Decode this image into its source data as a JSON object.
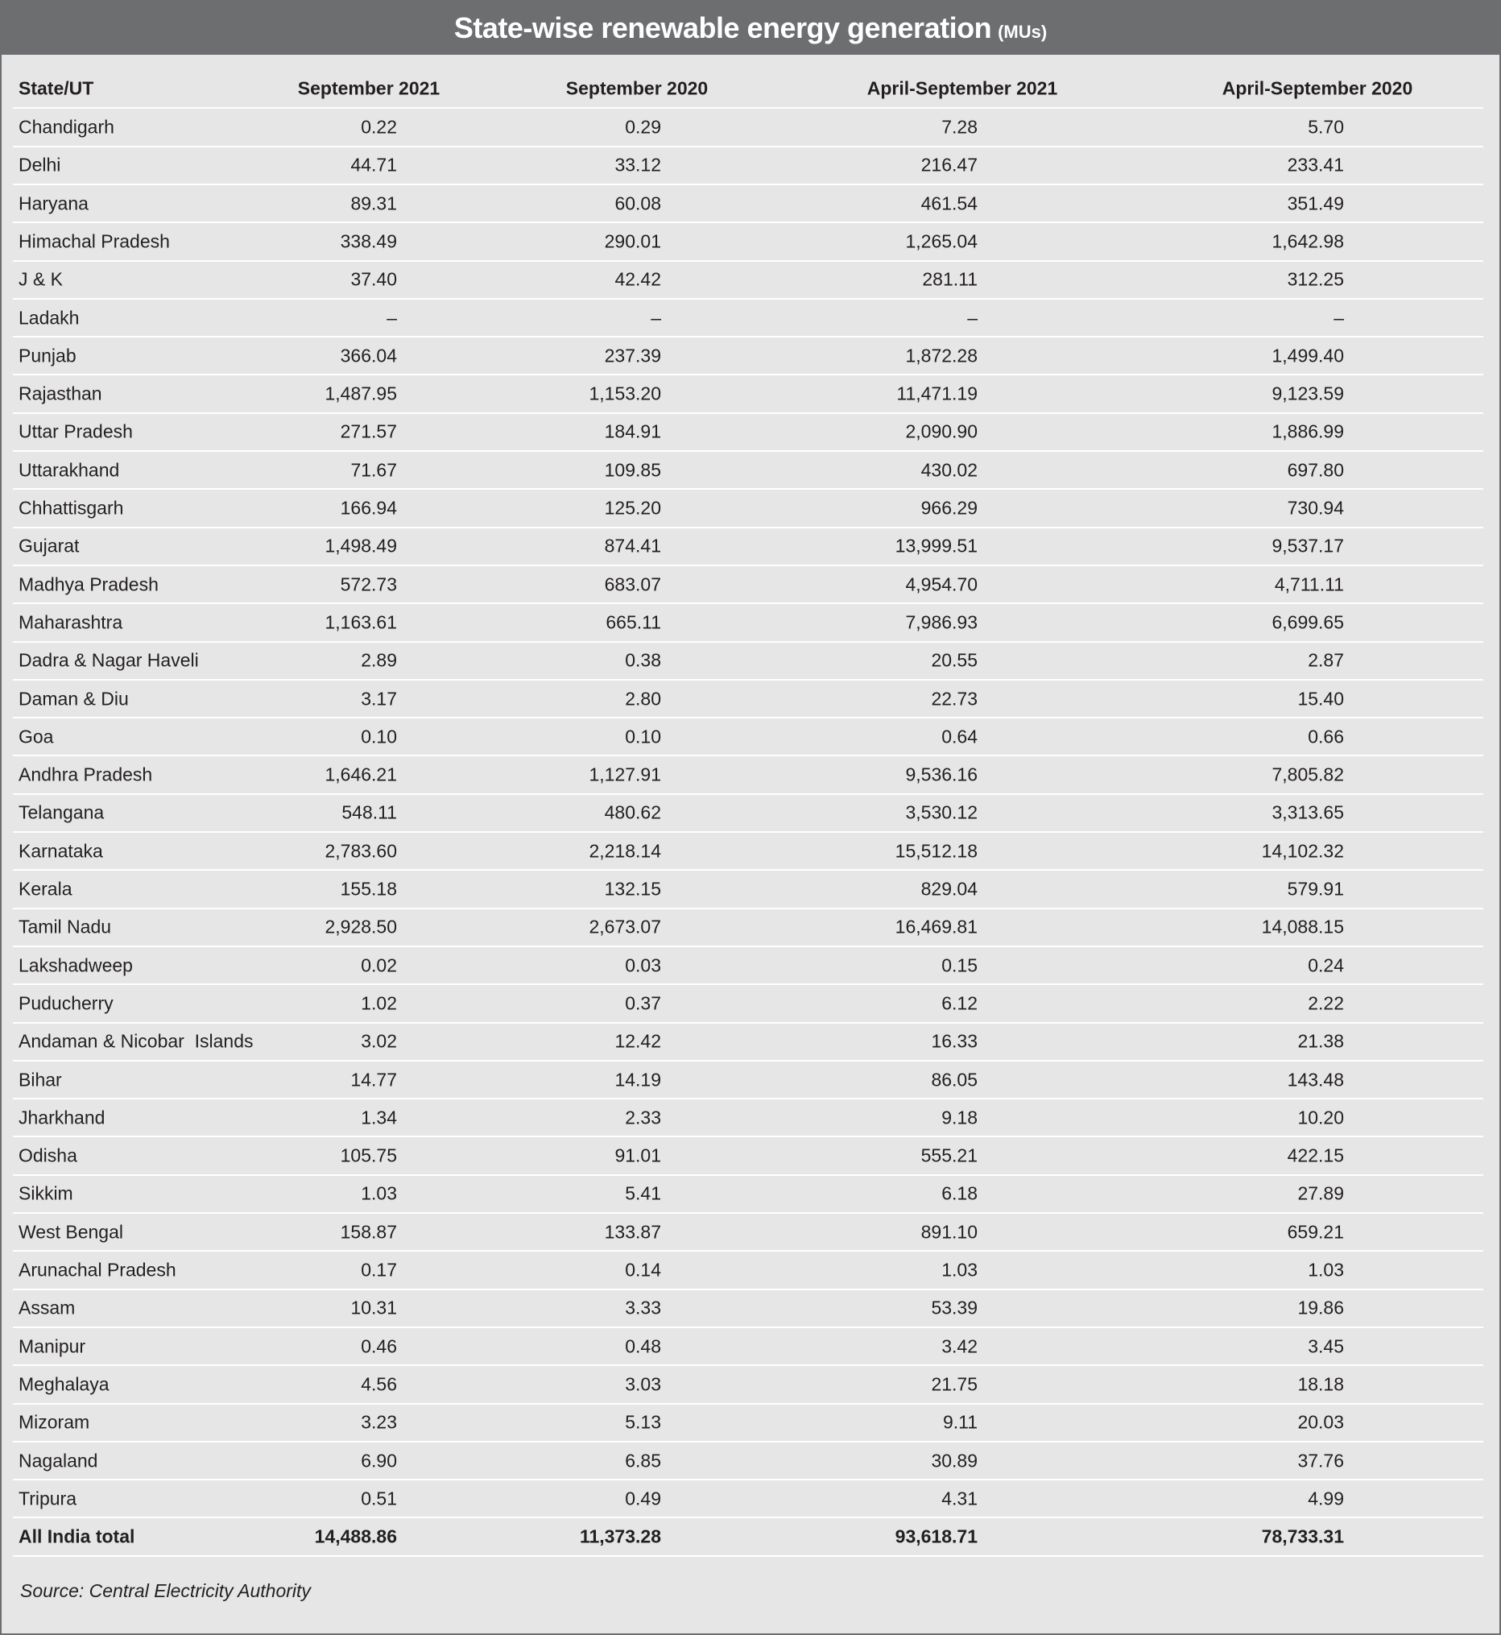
{
  "title": "State-wise renewable energy generation",
  "title_unit": "(MUs)",
  "table": {
    "header": [
      "State/UT",
      "September 2021",
      "September 2020",
      "April-September 2021",
      "April-September 2020"
    ],
    "rows": [
      [
        "Chandigarh",
        "0.22",
        "0.29",
        "7.28",
        "5.70"
      ],
      [
        "Delhi",
        "44.71",
        "33.12",
        "216.47",
        "233.41"
      ],
      [
        "Haryana",
        "89.31",
        "60.08",
        "461.54",
        "351.49"
      ],
      [
        "Himachal Pradesh",
        "338.49",
        "290.01",
        "1,265.04",
        "1,642.98"
      ],
      [
        "J & K",
        "37.40",
        "42.42",
        "281.11",
        "312.25"
      ],
      [
        "Ladakh",
        "–",
        "–",
        "–",
        "–"
      ],
      [
        "Punjab",
        "366.04",
        "237.39",
        "1,872.28",
        "1,499.40"
      ],
      [
        "Rajasthan",
        "1,487.95",
        "1,153.20",
        "11,471.19",
        "9,123.59"
      ],
      [
        "Uttar Pradesh",
        "271.57",
        "184.91",
        "2,090.90",
        "1,886.99"
      ],
      [
        "Uttarakhand",
        "71.67",
        "109.85",
        "430.02",
        "697.80"
      ],
      [
        "Chhattisgarh",
        "166.94",
        "125.20",
        "966.29",
        "730.94"
      ],
      [
        "Gujarat",
        "1,498.49",
        "874.41",
        "13,999.51",
        "9,537.17"
      ],
      [
        "Madhya Pradesh",
        "572.73",
        "683.07",
        "4,954.70",
        "4,711.11"
      ],
      [
        "Maharashtra",
        "1,163.61",
        "665.11",
        "7,986.93",
        "6,699.65"
      ],
      [
        "Dadra & Nagar Haveli",
        "2.89",
        "0.38",
        "20.55",
        "2.87"
      ],
      [
        "Daman & Diu",
        "3.17",
        "2.80",
        "22.73",
        "15.40"
      ],
      [
        "Goa",
        "0.10",
        "0.10",
        "0.64",
        "0.66"
      ],
      [
        "Andhra Pradesh",
        "1,646.21",
        "1,127.91",
        "9,536.16",
        "7,805.82"
      ],
      [
        "Telangana",
        "548.11",
        "480.62",
        "3,530.12",
        "3,313.65"
      ],
      [
        "Karnataka",
        "2,783.60",
        "2,218.14",
        "15,512.18",
        "14,102.32"
      ],
      [
        "Kerala",
        "155.18",
        "132.15",
        "829.04",
        "579.91"
      ],
      [
        "Tamil Nadu",
        "2,928.50",
        "2,673.07",
        "16,469.81",
        "14,088.15"
      ],
      [
        "Lakshadweep",
        "0.02",
        "0.03",
        "0.15",
        "0.24"
      ],
      [
        "Puducherry",
        "1.02",
        "0.37",
        "6.12",
        "2.22"
      ],
      [
        "Andaman & Nicobar  Islands",
        "3.02",
        "12.42",
        "16.33",
        "21.38"
      ],
      [
        "Bihar",
        "14.77",
        "14.19",
        "86.05",
        "143.48"
      ],
      [
        "Jharkhand",
        "1.34",
        "2.33",
        "9.18",
        "10.20"
      ],
      [
        "Odisha",
        "105.75",
        "91.01",
        "555.21",
        "422.15"
      ],
      [
        "Sikkim",
        "1.03",
        "5.41",
        "6.18",
        "27.89"
      ],
      [
        "West Bengal",
        "158.87",
        "133.87",
        "891.10",
        "659.21"
      ],
      [
        "Arunachal Pradesh",
        "0.17",
        "0.14",
        "1.03",
        "1.03"
      ],
      [
        "Assam",
        "10.31",
        "3.33",
        "53.39",
        "19.86"
      ],
      [
        "Manipur",
        "0.46",
        "0.48",
        "3.42",
        "3.45"
      ],
      [
        "Meghalaya",
        "4.56",
        "3.03",
        "21.75",
        "18.18"
      ],
      [
        "Mizoram",
        "3.23",
        "5.13",
        "9.11",
        "20.03"
      ],
      [
        "Nagaland",
        "6.90",
        "6.85",
        "30.89",
        "37.76"
      ],
      [
        "Tripura",
        "0.51",
        "0.49",
        "4.31",
        "4.99"
      ]
    ],
    "total": [
      "All India total",
      "14,488.86",
      "11,373.28",
      "93,618.71",
      "78,733.31"
    ]
  },
  "source": "Source: Central Electricity Authority"
}
